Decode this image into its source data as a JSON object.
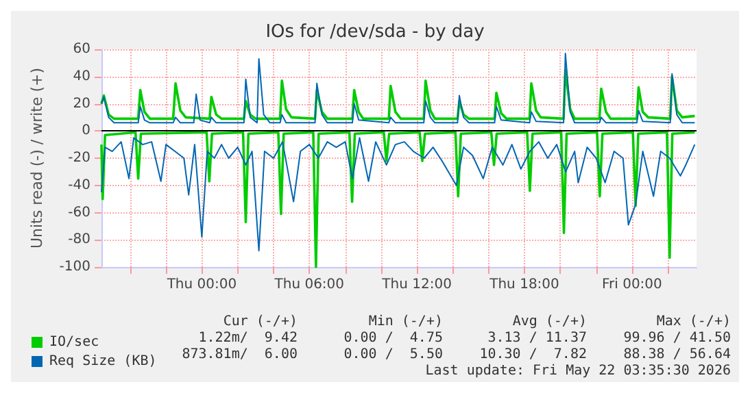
{
  "chart_data": {
    "type": "line",
    "title": "IOs for /dev/sda - by day",
    "ylabel": "Units read (-) / write (+)",
    "xlim": [
      "2026-05-20T18:24",
      "2026-05-22T03:36"
    ],
    "xticks": [
      {
        "value": "2026-05-20T20:00",
        "label": null
      },
      {
        "value": "2026-05-20T22:00",
        "label": null
      },
      {
        "value": "2026-05-21T00:00",
        "label": "Thu 00:00"
      },
      {
        "value": "2026-05-21T02:00",
        "label": null
      },
      {
        "value": "2026-05-21T04:00",
        "label": null
      },
      {
        "value": "2026-05-21T06:00",
        "label": "Thu 06:00"
      },
      {
        "value": "2026-05-21T08:00",
        "label": null
      },
      {
        "value": "2026-05-21T10:00",
        "label": null
      },
      {
        "value": "2026-05-21T12:00",
        "label": "Thu 12:00"
      },
      {
        "value": "2026-05-21T14:00",
        "label": null
      },
      {
        "value": "2026-05-21T16:00",
        "label": null
      },
      {
        "value": "2026-05-21T18:00",
        "label": "Thu 18:00"
      },
      {
        "value": "2026-05-21T20:00",
        "label": null
      },
      {
        "value": "2026-05-21T22:00",
        "label": null
      },
      {
        "value": "2026-05-22T00:00",
        "label": "Fri 00:00"
      },
      {
        "value": "2026-05-22T02:00",
        "label": null
      }
    ],
    "ylim": [
      -100,
      60
    ],
    "yticks": [
      -100,
      -80,
      -60,
      -40,
      -20,
      0,
      20,
      40,
      60
    ],
    "grid": true,
    "legend": "bottom left",
    "line_style": "solid",
    "marker": "none",
    "ref_lines": [
      {
        "axis": "y",
        "value": 0,
        "color": "#000000"
      }
    ],
    "series": [
      {
        "name": "IO/sec",
        "color": "#00cc00",
        "x": [
          "2026-05-20T18:24",
          "2026-05-20T18:32",
          "2026-05-20T18:48",
          "2026-05-20T19:06",
          "2026-05-20T20:27",
          "2026-05-20T20:34",
          "2026-05-20T20:48",
          "2026-05-20T21:06",
          "2026-05-20T22:24",
          "2026-05-20T22:32",
          "2026-05-20T22:48",
          "2026-05-20T23:06",
          "2026-05-21T00:26",
          "2026-05-21T00:32",
          "2026-05-21T00:48",
          "2026-05-21T01:06",
          "2026-05-21T02:21",
          "2026-05-21T02:27",
          "2026-05-21T02:42",
          "2026-05-21T03:00",
          "2026-05-21T04:22",
          "2026-05-21T04:28",
          "2026-05-21T04:42",
          "2026-05-21T05:00",
          "2026-05-21T06:19",
          "2026-05-21T06:25",
          "2026-05-21T06:42",
          "2026-05-21T07:00",
          "2026-05-21T08:24",
          "2026-05-21T08:30",
          "2026-05-21T08:45",
          "2026-05-21T09:00",
          "2026-05-21T10:26",
          "2026-05-21T10:32",
          "2026-05-21T10:48",
          "2026-05-21T11:06",
          "2026-05-21T12:23",
          "2026-05-21T12:29",
          "2026-05-21T12:45",
          "2026-05-21T13:00",
          "2026-05-21T14:16",
          "2026-05-21T14:22",
          "2026-05-21T14:36",
          "2026-05-21T14:54",
          "2026-05-21T16:20",
          "2026-05-21T16:26",
          "2026-05-21T16:42",
          "2026-05-21T17:00",
          "2026-05-21T18:17",
          "2026-05-21T18:23",
          "2026-05-21T18:39",
          "2026-05-21T18:54",
          "2026-05-21T20:11",
          "2026-05-21T20:17",
          "2026-05-21T20:33",
          "2026-05-21T20:48",
          "2026-05-21T22:11",
          "2026-05-21T22:17",
          "2026-05-21T22:33",
          "2026-05-21T22:48",
          "2026-05-22T00:16",
          "2026-05-22T00:22",
          "2026-05-22T00:36",
          "2026-05-22T00:54",
          "2026-05-22T02:08",
          "2026-05-22T02:14",
          "2026-05-22T02:30",
          "2026-05-22T02:48",
          "2026-05-22T03:30"
        ],
        "values": [
          20,
          26,
          12,
          9,
          9,
          30,
          14,
          9,
          9,
          35,
          15,
          10,
          9,
          25,
          12,
          9,
          9,
          22,
          12,
          9,
          9,
          37,
          16,
          10,
          9,
          30,
          14,
          9,
          9,
          30,
          14,
          9,
          9,
          33,
          14,
          9,
          9,
          37,
          15,
          9,
          9,
          22,
          12,
          9,
          9,
          28,
          13,
          9,
          9,
          35,
          15,
          10,
          9,
          45,
          16,
          9,
          9,
          31,
          14,
          9,
          9,
          32,
          14,
          10,
          9,
          40,
          15,
          10,
          11
        ]
      },
      {
        "color": "#00cc00",
        "x": [
          "2026-05-20T18:24",
          "2026-05-20T18:28",
          "2026-05-20T18:36",
          "2026-05-20T20:18",
          "2026-05-20T20:27",
          "2026-05-20T20:36",
          "2026-05-21T00:16",
          "2026-05-21T00:25",
          "2026-05-21T00:34",
          "2026-05-21T02:18",
          "2026-05-21T02:27",
          "2026-05-21T02:36",
          "2026-05-21T04:16",
          "2026-05-21T04:25",
          "2026-05-21T04:34",
          "2026-05-21T06:13",
          "2026-05-21T06:22",
          "2026-05-21T06:31",
          "2026-05-21T08:14",
          "2026-05-21T08:23",
          "2026-05-21T08:32",
          "2026-05-21T10:09",
          "2026-05-21T10:18",
          "2026-05-21T10:27",
          "2026-05-21T12:09",
          "2026-05-21T12:18",
          "2026-05-21T12:27",
          "2026-05-21T14:09",
          "2026-05-21T14:18",
          "2026-05-21T14:27",
          "2026-05-21T16:09",
          "2026-05-21T16:18",
          "2026-05-21T16:27",
          "2026-05-21T18:09",
          "2026-05-21T18:18",
          "2026-05-21T18:27",
          "2026-05-21T20:03",
          "2026-05-21T20:12",
          "2026-05-21T20:21",
          "2026-05-21T22:03",
          "2026-05-21T22:12",
          "2026-05-21T22:21",
          "2026-05-22T00:03",
          "2026-05-22T00:12",
          "2026-05-22T00:21",
          "2026-05-22T01:57",
          "2026-05-22T02:06",
          "2026-05-22T02:15",
          "2026-05-22T03:30"
        ],
        "values": [
          -10,
          -50,
          -3,
          -1,
          -35,
          -2,
          -1,
          -37,
          -2,
          -1,
          -67,
          -2,
          -1,
          -61,
          -2,
          -1,
          -100,
          -2,
          -1,
          -52,
          -2,
          -1,
          -22,
          -2,
          -1,
          -22,
          -2,
          -1,
          -48,
          -2,
          -1,
          -25,
          -2,
          -1,
          -44,
          -2,
          -1,
          -75,
          -2,
          -1,
          -48,
          -2,
          -1,
          -55,
          -2,
          -1,
          -93,
          -2,
          -1
        ]
      },
      {
        "name": "Req Size (KB)",
        "color": "#0066b3",
        "x": [
          "2026-05-20T18:24",
          "2026-05-20T18:32",
          "2026-05-20T18:48",
          "2026-05-20T19:06",
          "2026-05-20T20:27",
          "2026-05-20T20:34",
          "2026-05-20T20:48",
          "2026-05-20T21:06",
          "2026-05-20T22:24",
          "2026-05-20T22:32",
          "2026-05-20T22:48",
          "2026-05-20T23:33",
          "2026-05-20T23:41",
          "2026-05-20T23:54",
          "2026-05-21T00:26",
          "2026-05-21T00:32",
          "2026-05-21T00:48",
          "2026-05-21T02:21",
          "2026-05-21T02:27",
          "2026-05-21T02:42",
          "2026-05-21T03:05",
          "2026-05-21T03:11",
          "2026-05-21T03:27",
          "2026-05-21T03:48",
          "2026-05-21T04:22",
          "2026-05-21T04:28",
          "2026-05-21T04:42",
          "2026-05-21T06:19",
          "2026-05-21T06:25",
          "2026-05-21T06:42",
          "2026-05-21T07:00",
          "2026-05-21T08:24",
          "2026-05-21T08:30",
          "2026-05-21T08:45",
          "2026-05-21T10:26",
          "2026-05-21T10:32",
          "2026-05-21T10:48",
          "2026-05-21T12:23",
          "2026-05-21T12:29",
          "2026-05-21T12:45",
          "2026-05-21T13:00",
          "2026-05-21T14:16",
          "2026-05-21T14:22",
          "2026-05-21T14:36",
          "2026-05-21T14:54",
          "2026-05-21T16:20",
          "2026-05-21T16:26",
          "2026-05-21T16:42",
          "2026-05-21T18:17",
          "2026-05-21T18:23",
          "2026-05-21T18:39",
          "2026-05-21T20:11",
          "2026-05-21T20:17",
          "2026-05-21T20:33",
          "2026-05-21T20:48",
          "2026-05-21T22:11",
          "2026-05-21T22:17",
          "2026-05-21T22:33",
          "2026-05-22T00:16",
          "2026-05-22T00:22",
          "2026-05-22T00:36",
          "2026-05-22T02:08",
          "2026-05-22T02:14",
          "2026-05-22T02:30",
          "2026-05-22T02:48",
          "2026-05-22T03:30"
        ],
        "values": [
          20,
          25,
          10,
          6,
          6,
          18,
          8,
          6,
          6,
          10,
          6,
          6,
          27,
          8,
          6,
          10,
          6,
          6,
          38,
          10,
          6,
          53,
          12,
          6,
          6,
          12,
          6,
          6,
          35,
          12,
          6,
          6,
          20,
          8,
          6,
          10,
          6,
          6,
          22,
          10,
          6,
          6,
          26,
          10,
          6,
          6,
          18,
          8,
          6,
          14,
          7,
          6,
          57,
          14,
          6,
          6,
          10,
          6,
          6,
          15,
          7,
          6,
          42,
          12,
          6,
          6
        ]
      },
      {
        "color": "#0066b3",
        "x": [
          "2026-05-20T18:24",
          "2026-05-20T18:36",
          "2026-05-20T19:00",
          "2026-05-20T19:30",
          "2026-05-20T19:56",
          "2026-05-20T20:12",
          "2026-05-20T20:42",
          "2026-05-20T21:12",
          "2026-05-20T21:43",
          "2026-05-20T22:00",
          "2026-05-20T22:30",
          "2026-05-20T23:00",
          "2026-05-20T23:16",
          "2026-05-20T23:36",
          "2026-05-21T00:00",
          "2026-05-21T00:18",
          "2026-05-21T00:42",
          "2026-05-21T01:06",
          "2026-05-21T01:30",
          "2026-05-21T02:00",
          "2026-05-21T02:27",
          "2026-05-21T02:48",
          "2026-05-21T03:11",
          "2026-05-21T03:30",
          "2026-05-21T04:00",
          "2026-05-21T04:30",
          "2026-05-21T05:07",
          "2026-05-21T05:30",
          "2026-05-21T06:00",
          "2026-05-21T06:30",
          "2026-05-21T07:00",
          "2026-05-21T07:30",
          "2026-05-21T08:00",
          "2026-05-21T08:24",
          "2026-05-21T08:48",
          "2026-05-21T09:18",
          "2026-05-21T09:42",
          "2026-05-21T10:18",
          "2026-05-21T10:48",
          "2026-05-21T11:18",
          "2026-05-21T11:48",
          "2026-05-21T12:24",
          "2026-05-21T12:54",
          "2026-05-21T13:24",
          "2026-05-21T14:12",
          "2026-05-21T14:36",
          "2026-05-21T15:06",
          "2026-05-21T15:42",
          "2026-05-21T16:12",
          "2026-05-21T16:48",
          "2026-05-21T17:18",
          "2026-05-21T17:48",
          "2026-05-21T18:18",
          "2026-05-21T18:48",
          "2026-05-21T19:18",
          "2026-05-21T19:48",
          "2026-05-21T20:18",
          "2026-05-21T20:48",
          "2026-05-21T21:00",
          "2026-05-21T21:30",
          "2026-05-21T22:00",
          "2026-05-21T22:30",
          "2026-05-21T23:00",
          "2026-05-21T23:30",
          "2026-05-21T23:48",
          "2026-05-22T00:12",
          "2026-05-22T00:36",
          "2026-05-22T01:12",
          "2026-05-22T01:36",
          "2026-05-22T02:06",
          "2026-05-22T02:42",
          "2026-05-22T03:00",
          "2026-05-22T03:30"
        ],
        "values": [
          -45,
          -12,
          -15,
          -8,
          -35,
          -5,
          -10,
          -8,
          -37,
          -10,
          -15,
          -20,
          -47,
          -10,
          -78,
          -15,
          -20,
          -10,
          -20,
          -12,
          -25,
          -15,
          -88,
          -15,
          -20,
          -8,
          -52,
          -15,
          -10,
          -20,
          -8,
          -12,
          -8,
          -35,
          -5,
          -37,
          -8,
          -25,
          -10,
          -8,
          -15,
          -20,
          -12,
          -22,
          -40,
          -12,
          -18,
          -35,
          -12,
          -25,
          -10,
          -28,
          -15,
          -8,
          -20,
          -10,
          -30,
          -15,
          -38,
          -12,
          -20,
          -38,
          -15,
          -20,
          -69,
          -54,
          -15,
          -48,
          -15,
          -20,
          -33,
          -25,
          -10
        ]
      }
    ],
    "annotations": [
      "Cur (-/+)",
      "Min (-/+)",
      "Avg (-/+)",
      "Max (-/+)",
      "1.22m/  9.42",
      "0.00 /  4.75",
      "3.13 / 11.37",
      "99.96 / 41.50",
      "873.81m/  6.00",
      "0.00 /  5.50",
      "10.30 /  7.82",
      "88.38 / 56.64",
      "Last update: Fri May 22 03:35:30 2026"
    ]
  }
}
